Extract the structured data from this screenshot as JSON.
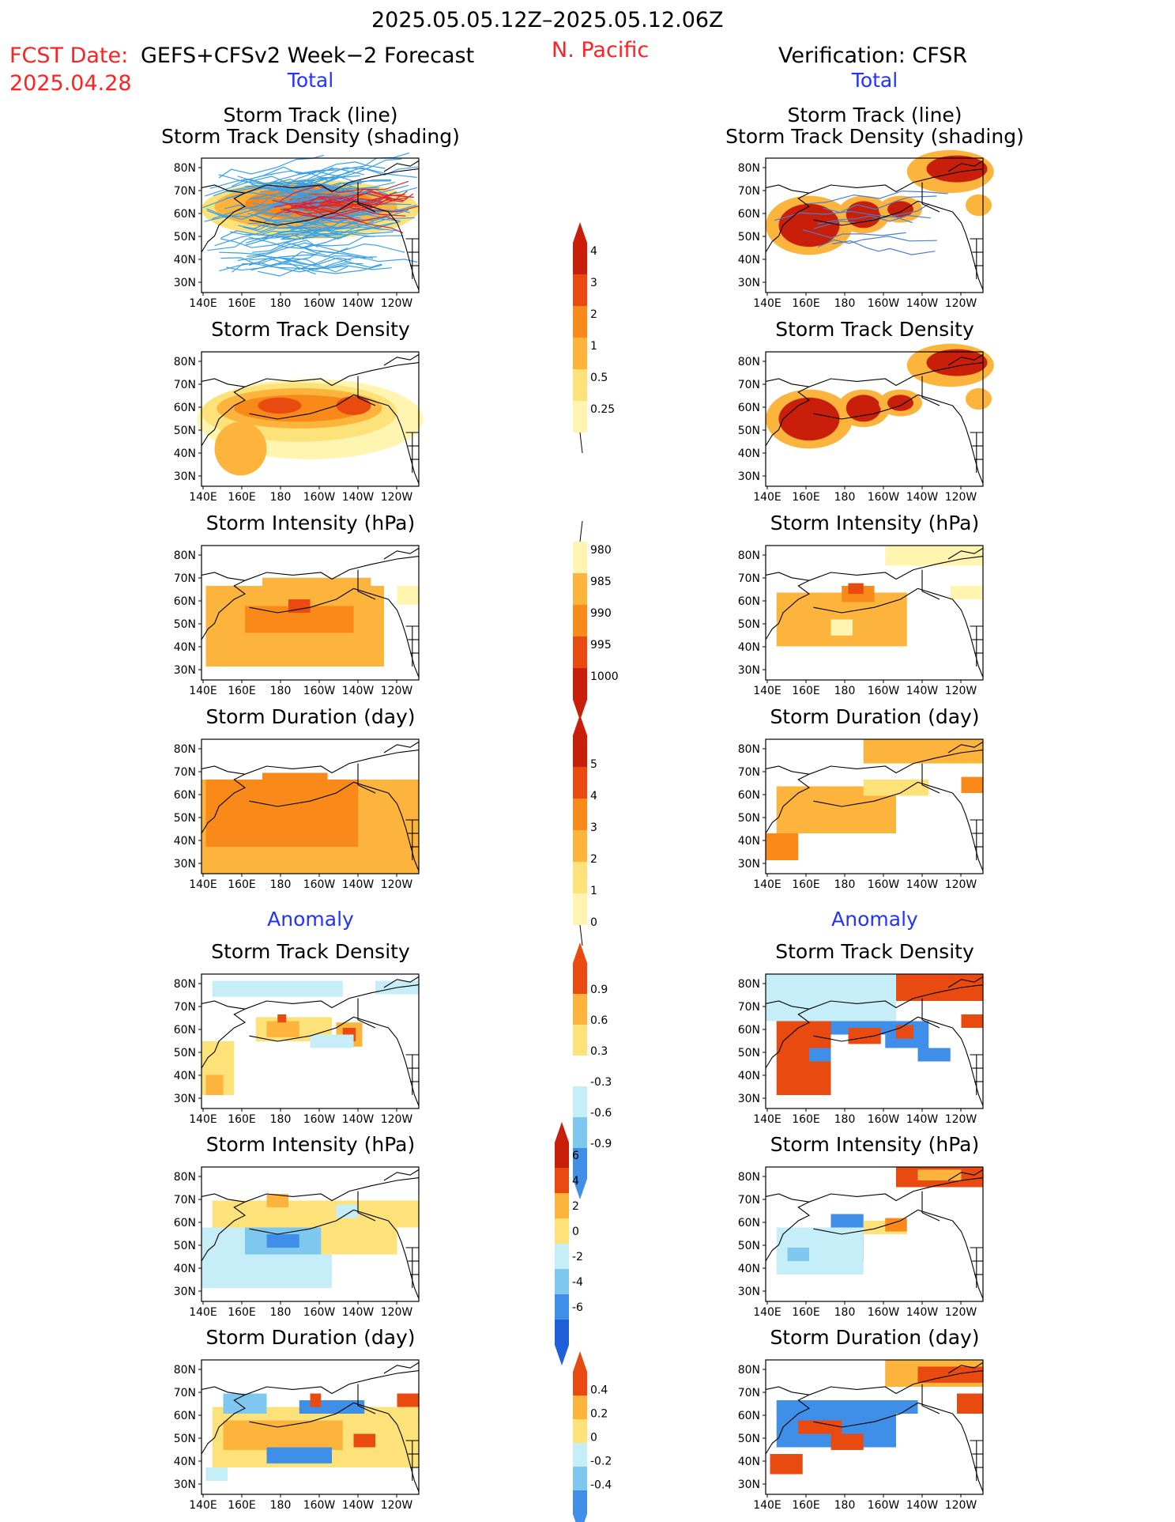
{
  "header": {
    "period": "2025.05.05.12Z–2025.05.12.06Z",
    "fcst_label": "FCST Date:",
    "fcst_model": "GEFS+CFSv2 Week−2 Forecast",
    "fcst_date": "2025.04.28",
    "region": "N. Pacific",
    "verification": "Verification: CFSR"
  },
  "sections": {
    "total": "Total",
    "anomaly": "Anomaly"
  },
  "panel_titles": {
    "track_line": "Storm Track (line)",
    "track_shading": "Storm Track Density (shading)",
    "density": "Storm Track Density",
    "intensity": "Storm Intensity (hPa)",
    "duration": "Storm Duration (day)"
  },
  "axes": {
    "lat_ticks": [
      "80N",
      "70N",
      "60N",
      "50N",
      "40N",
      "30N"
    ],
    "lon_ticks": [
      "140E",
      "160E",
      "180",
      "160W",
      "140W",
      "120W"
    ]
  },
  "colorbars": {
    "density_total": [
      "0.25",
      "0.5",
      "1",
      "2",
      "3",
      "4"
    ],
    "intensity_total": [
      "980",
      "985",
      "990",
      "995",
      "1000"
    ],
    "duration_total": [
      "0",
      "1",
      "2",
      "3",
      "4",
      "5"
    ],
    "density_anom": [
      "-0.9",
      "-0.6",
      "-0.3",
      "0.3",
      "0.6",
      "0.9"
    ],
    "intensity_anom": [
      "-6",
      "-4",
      "-2",
      "0",
      "2",
      "4",
      "6"
    ],
    "duration_anom": [
      "-0.4",
      "-0.2",
      "0",
      "0.2",
      "0.4"
    ]
  },
  "colors": {
    "ylw1": "#fff5b0",
    "ylw2": "#fde27a",
    "org1": "#fdb43c",
    "org2": "#f98a1a",
    "red1": "#e84a10",
    "red2": "#c81e0a",
    "red3": "#8a0c0a",
    "blu1": "#c6eef8",
    "blu2": "#7ec8f0",
    "blu3": "#3f8fe8",
    "blu4": "#1f5fd8",
    "track": "#3aa0e8"
  }
}
